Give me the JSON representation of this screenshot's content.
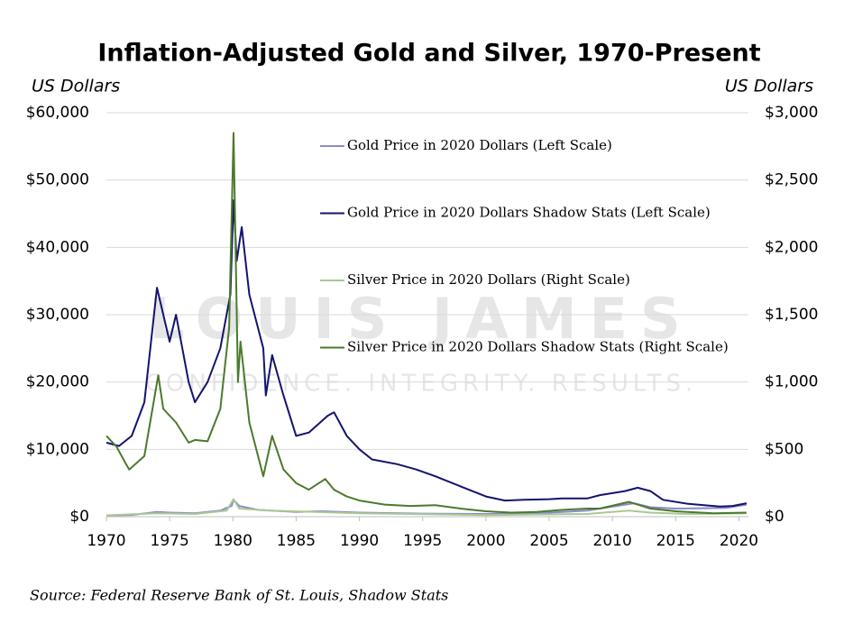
{
  "chart_data": {
    "type": "line",
    "title": "Inflation-Adjusted Gold and Silver, 1970-Present",
    "y_label": "US Dollars",
    "y2_label": "US Dollars",
    "source": "Source: Federal Reserve Bank of St. Louis, Shadow Stats",
    "watermark": "LOUIS JAMES",
    "watermark_tagline": "CONFIDENCE. INTEGRITY. RESULTS.",
    "xlim": [
      1970,
      2020.75
    ],
    "xticks": [
      1970,
      1975,
      1980,
      1985,
      1990,
      1995,
      2000,
      2005,
      2010,
      2015,
      2020
    ],
    "ylim": [
      0,
      60000
    ],
    "yticks": [
      {
        "value": 0,
        "label": "$0"
      },
      {
        "value": 10000,
        "label": "$10,000"
      },
      {
        "value": 20000,
        "label": "$20,000"
      },
      {
        "value": 30000,
        "label": "$30,000"
      },
      {
        "value": 40000,
        "label": "$40,000"
      },
      {
        "value": 50000,
        "label": "$50,000"
      },
      {
        "value": 60000,
        "label": "$60,000"
      }
    ],
    "y2lim": [
      0,
      3000
    ],
    "y2ticks": [
      {
        "value": 0,
        "label": "$0"
      },
      {
        "value": 500,
        "label": "$500"
      },
      {
        "value": 1000,
        "label": "$1,000"
      },
      {
        "value": 1500,
        "label": "$1,500"
      },
      {
        "value": 2000,
        "label": "$2,000"
      },
      {
        "value": 2500,
        "label": "$2,500"
      },
      {
        "value": 3000,
        "label": "$3,000"
      }
    ],
    "grid": true,
    "series": [
      {
        "name": "Gold Price in 2020 Dollars (Left Scale)",
        "color": "#8a8ac8",
        "x": [
          1970,
          1972,
          1974,
          1975,
          1977,
          1979,
          1979.9,
          1980.05,
          1980.5,
          1982,
          1985,
          1987,
          1990,
          1995,
          2000,
          2004,
          2008,
          2011.7,
          2013,
          2015,
          2019,
          2020.6
        ],
        "values": [
          190,
          250,
          700,
          600,
          500,
          900,
          1600,
          2500,
          1600,
          1000,
          700,
          800,
          600,
          450,
          400,
          500,
          900,
          2000,
          1400,
          1200,
          1300,
          1800
        ]
      },
      {
        "name": "Gold Price in 2020 Dollars Shadow Stats (Left Scale)",
        "color": "#14146e",
        "x": [
          1970,
          1971,
          1972,
          1973,
          1974,
          1975,
          1975.5,
          1976.5,
          1977,
          1978,
          1979,
          1979.8,
          1980.05,
          1980.3,
          1980.7,
          1981.3,
          1982.4,
          1982.6,
          1983.1,
          1984,
          1985,
          1986,
          1987.5,
          1988,
          1989,
          1990,
          1991,
          1993,
          1994.5,
          1996,
          1998,
          2000,
          2001.5,
          2003,
          2005,
          2006,
          2008,
          2009,
          2011,
          2012,
          2013,
          2014,
          2016,
          2018.5,
          2019.5,
          2020.6
        ],
        "values": [
          11000,
          10500,
          12000,
          17000,
          34000,
          26000,
          30000,
          20000,
          17000,
          20000,
          25000,
          33000,
          47000,
          38000,
          43000,
          33000,
          25000,
          18000,
          24000,
          18000,
          12000,
          12500,
          15000,
          15500,
          12000,
          10000,
          8500,
          7800,
          7000,
          6000,
          4500,
          3000,
          2400,
          2500,
          2600,
          2700,
          2700,
          3200,
          3800,
          4300,
          3800,
          2500,
          1900,
          1500,
          1600,
          2000
        ]
      },
      {
        "name": "Silver Price in 2020 Dollars (Right Scale)",
        "color": "#a9c894",
        "axis": "y2",
        "x": [
          1970,
          1974,
          1977,
          1979.5,
          1980.05,
          1980.5,
          1983,
          1990,
          2000,
          2008,
          2011.3,
          2013,
          2016,
          2020.6
        ],
        "values": [
          10,
          25,
          20,
          45,
          130,
          60,
          45,
          25,
          12,
          20,
          45,
          30,
          20,
          25
        ]
      },
      {
        "name": "Silver Price in 2020 Dollars Shadow Stats (Right Scale)",
        "color": "#4b7a2c",
        "axis": "y2",
        "x": [
          1970,
          1970.8,
          1971.5,
          1971.8,
          1973,
          1974.1,
          1974.5,
          1975.5,
          1976.5,
          1977,
          1978,
          1979,
          1979.7,
          1980.05,
          1980.4,
          1980.6,
          1981.3,
          1982.4,
          1983.1,
          1984,
          1985,
          1986,
          1987.3,
          1988,
          1989,
          1990,
          1992,
          1994,
          1996,
          1998,
          2000,
          2002,
          2004,
          2006,
          2008,
          2009,
          2011.3,
          2012,
          2013,
          2015,
          2018,
          2020.6
        ],
        "values": [
          600,
          520,
          400,
          350,
          450,
          1050,
          800,
          700,
          550,
          570,
          560,
          800,
          1400,
          2850,
          1000,
          1300,
          700,
          300,
          600,
          350,
          250,
          200,
          280,
          200,
          150,
          120,
          90,
          80,
          85,
          60,
          40,
          30,
          35,
          50,
          60,
          60,
          110,
          90,
          60,
          40,
          25,
          30
        ]
      }
    ]
  }
}
